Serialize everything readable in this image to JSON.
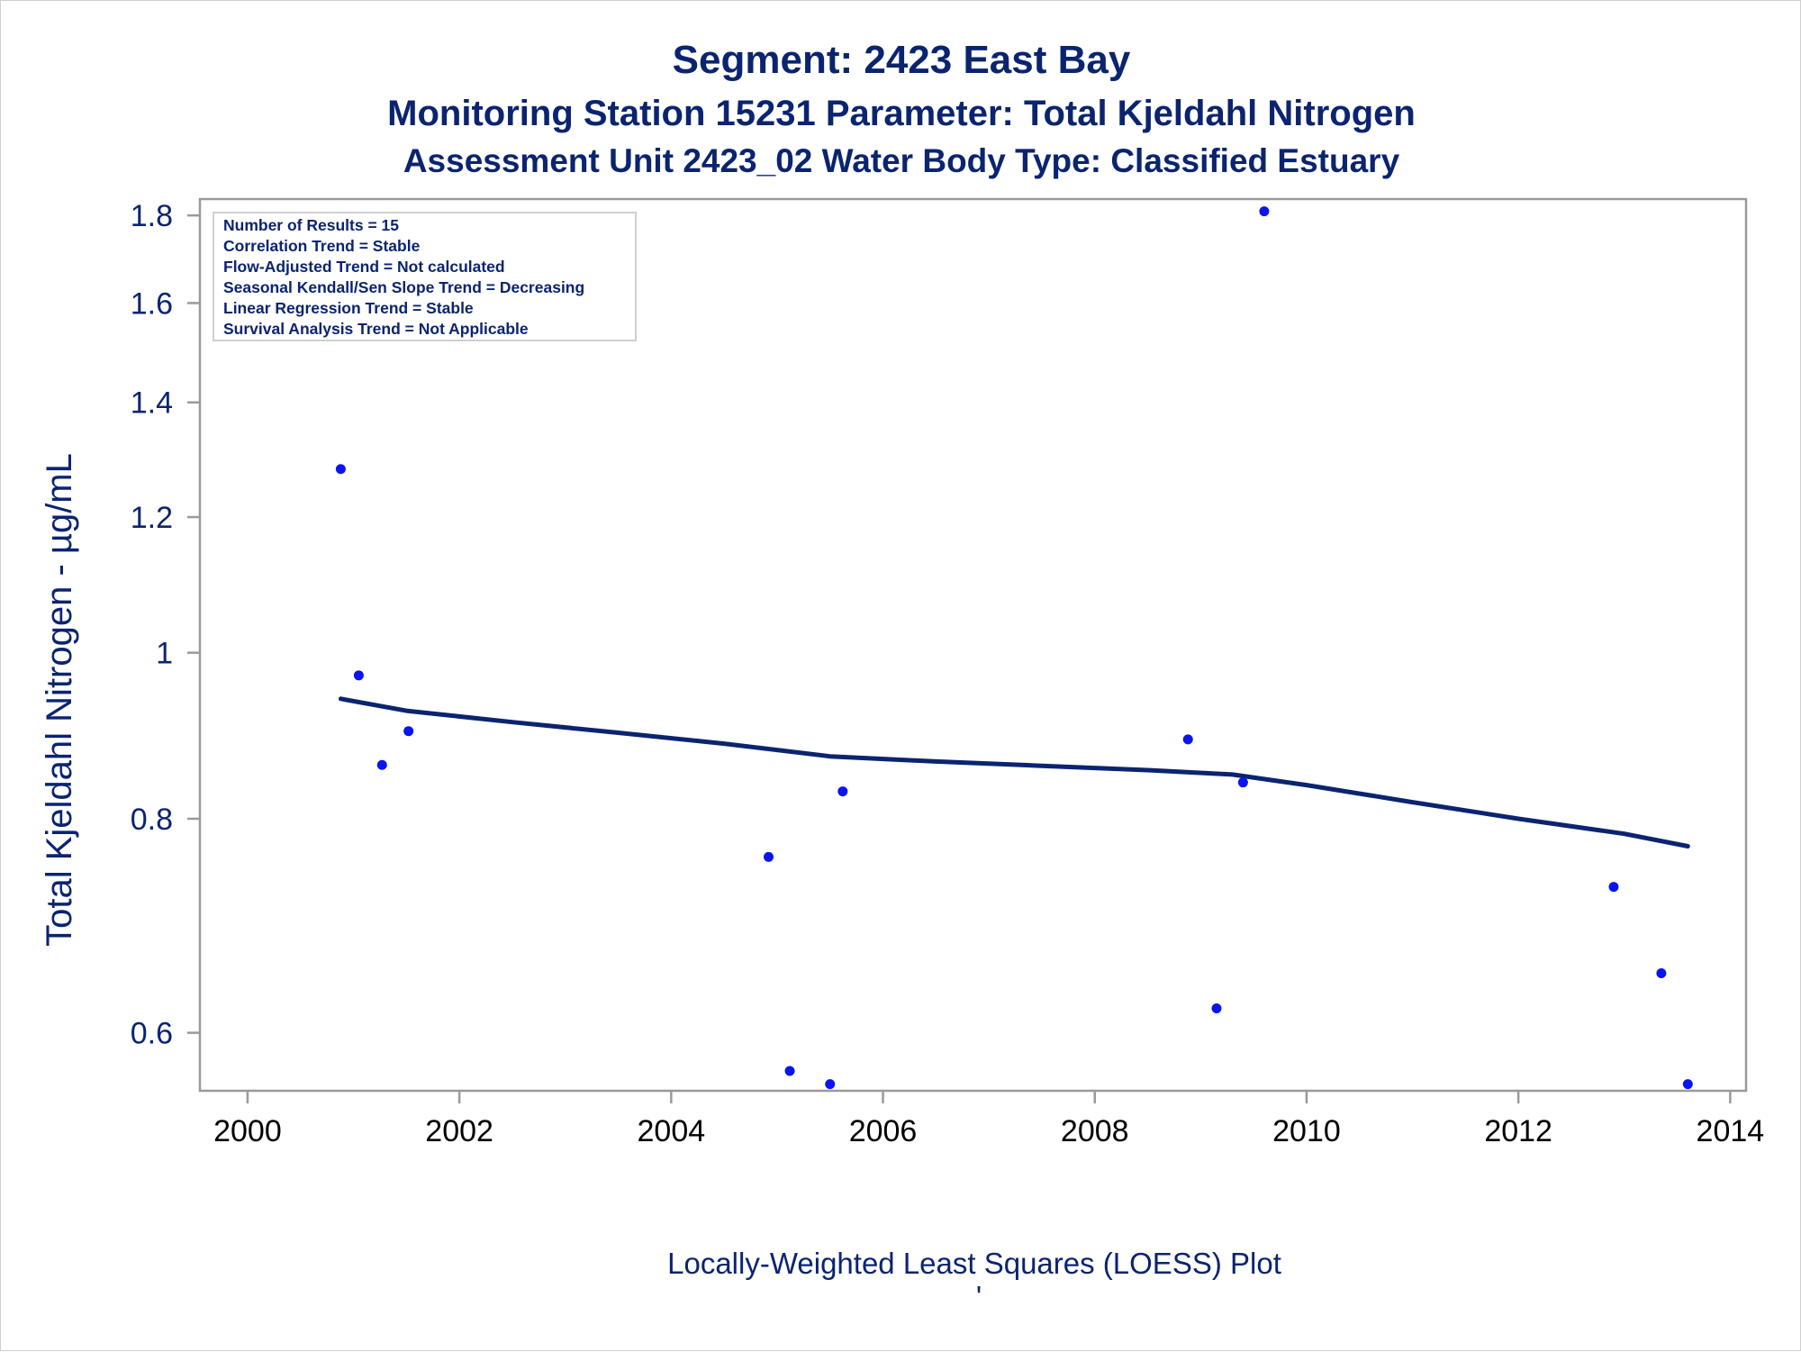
{
  "chart_data": {
    "type": "scatter",
    "title": "Segment: 2423  East Bay",
    "subtitle": "Monitoring Station 15231 Parameter: Total Kjeldahl Nitrogen",
    "subtitle2": "Assessment Unit 2423_02   Water Body Type: Classified Estuary",
    "xlabel": "",
    "ylabel": "Total Kjeldahl Nitrogen -  µg/mL",
    "footnote": "Locally-Weighted Least Squares (LOESS) Plot",
    "footnote_mark": "'",
    "y_scale": "log",
    "xlim": [
      1999.55,
      2014.15
    ],
    "ylim": [
      0.555,
      1.84
    ],
    "x_ticks": [
      2000,
      2002,
      2004,
      2006,
      2008,
      2010,
      2012,
      2014
    ],
    "y_ticks": [
      0.6,
      0.8,
      1,
      1.2,
      1.4,
      1.6,
      1.8
    ],
    "grid": false,
    "legend": "none",
    "colors": {
      "points": "#0a14f0",
      "trend": "#0b2470",
      "text": "#0b2470",
      "axis": "#9a9a9a"
    },
    "stats_box": {
      "position": "top-left",
      "lines": [
        "Number of Results = 15",
        "Correlation Trend = Stable",
        "Flow-Adjusted Trend = Not calculated",
        "Seasonal Kendall/Sen Slope Trend = Decreasing",
        "Linear Regression Trend = Stable",
        "Survival Analysis Trend = Not Applicable"
      ]
    },
    "points": [
      {
        "x": 2000.88,
        "y": 1.28
      },
      {
        "x": 2001.05,
        "y": 0.97
      },
      {
        "x": 2001.27,
        "y": 0.86
      },
      {
        "x": 2001.52,
        "y": 0.9
      },
      {
        "x": 2004.92,
        "y": 0.76
      },
      {
        "x": 2005.12,
        "y": 0.57
      },
      {
        "x": 2005.5,
        "y": 0.56
      },
      {
        "x": 2005.62,
        "y": 0.83
      },
      {
        "x": 2008.88,
        "y": 0.89
      },
      {
        "x": 2009.15,
        "y": 0.62
      },
      {
        "x": 2009.4,
        "y": 0.84
      },
      {
        "x": 2009.6,
        "y": 1.81
      },
      {
        "x": 2012.9,
        "y": 0.73
      },
      {
        "x": 2013.35,
        "y": 0.65
      },
      {
        "x": 2013.6,
        "y": 0.56
      }
    ],
    "loess": [
      {
        "x": 2000.88,
        "y": 0.94
      },
      {
        "x": 2001.5,
        "y": 0.925
      },
      {
        "x": 2002.5,
        "y": 0.911
      },
      {
        "x": 2003.5,
        "y": 0.898
      },
      {
        "x": 2004.5,
        "y": 0.885
      },
      {
        "x": 2005.5,
        "y": 0.87
      },
      {
        "x": 2006.5,
        "y": 0.864
      },
      {
        "x": 2007.5,
        "y": 0.859
      },
      {
        "x": 2008.5,
        "y": 0.854
      },
      {
        "x": 2009.3,
        "y": 0.849
      },
      {
        "x": 2010.0,
        "y": 0.837
      },
      {
        "x": 2011.0,
        "y": 0.818
      },
      {
        "x": 2012.0,
        "y": 0.8
      },
      {
        "x": 2013.0,
        "y": 0.784
      },
      {
        "x": 2013.6,
        "y": 0.771
      }
    ]
  }
}
